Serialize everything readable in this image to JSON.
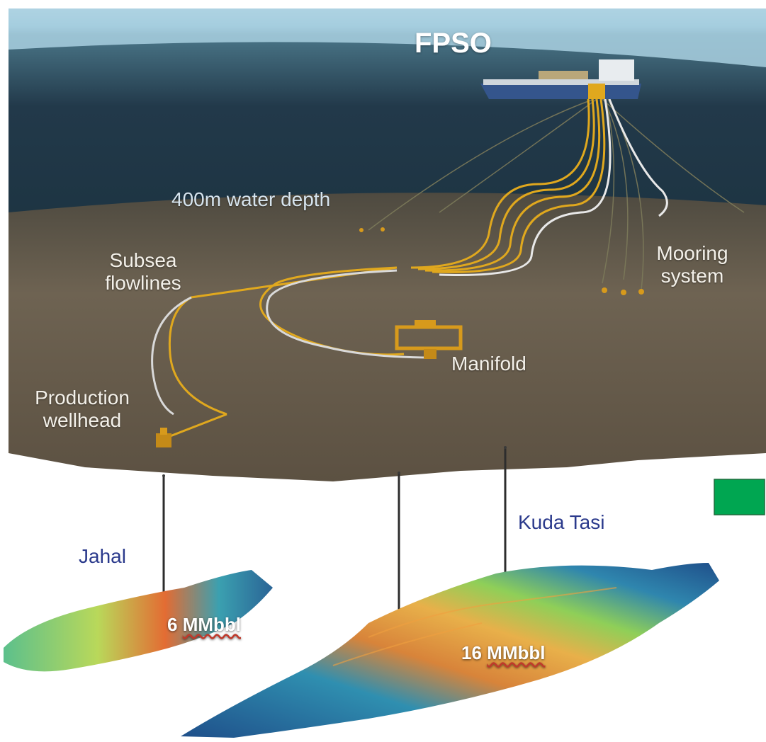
{
  "labels": {
    "fpso": "FPSO",
    "water_depth": "400m water depth",
    "subsea_flowlines": [
      "Subsea",
      "flowlines"
    ],
    "mooring_system": [
      "Mooring",
      "system"
    ],
    "manifold": "Manifold",
    "production_wellhead": [
      "Production",
      "wellhead"
    ]
  },
  "reservoirs": [
    {
      "name": "Jahal",
      "volume_value": "6",
      "volume_unit": "MMbbl"
    },
    {
      "name": "Kuda Tasi",
      "volume_value": "16",
      "volume_unit": "MMbbl"
    }
  ],
  "colors": {
    "sea_top": "#8fc0d6",
    "sea_deep": "#1d3442",
    "seabed": "#6e6352",
    "flowline": "#e0a81e",
    "reservoir_high": "#e0602a",
    "reservoir_mid": "#9fd04a",
    "reservoir_low": "#1f4f8a",
    "legend_box": "#00a651",
    "label_navy": "#2b3a8c"
  }
}
